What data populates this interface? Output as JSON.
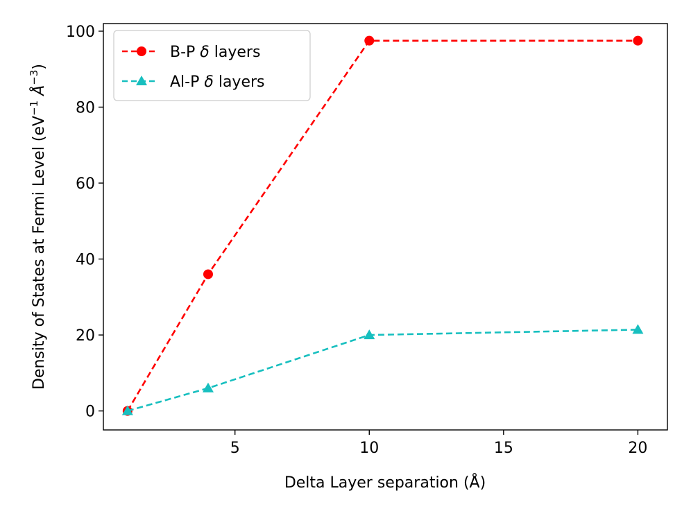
{
  "chart_data": {
    "type": "line",
    "xlabel": "Delta Layer separation (Å)",
    "ylabel_main": "Density of States at Fermi Level (eV",
    "ylabel_sup1": "−1",
    "ylabel_mid": " Å",
    "ylabel_sup2": "−3",
    "ylabel_end": ")",
    "xlim": [
      0.1,
      21.1
    ],
    "ylim": [
      -5,
      102
    ],
    "xticks": [
      5,
      10,
      15,
      20
    ],
    "yticks": [
      0,
      20,
      40,
      60,
      80,
      100
    ],
    "grid": false,
    "legend_position": "top-left",
    "series": [
      {
        "name": "B-P δ layers",
        "name_prefix": "B-P ",
        "name_symbol": "δ",
        "name_suffix": " layers",
        "color": "#ff0000",
        "marker": "circle",
        "line_style": "dashed",
        "x": [
          1,
          4,
          10,
          20
        ],
        "y": [
          0,
          36,
          97.5,
          97.5
        ]
      },
      {
        "name": "Al-P δ layers",
        "name_prefix": "Al-P ",
        "name_symbol": "δ",
        "name_suffix": " layers",
        "color": "#17bfbf",
        "marker": "triangle",
        "line_style": "dashed",
        "x": [
          1,
          4,
          10,
          20
        ],
        "y": [
          0,
          6,
          20,
          21.4
        ]
      }
    ]
  }
}
